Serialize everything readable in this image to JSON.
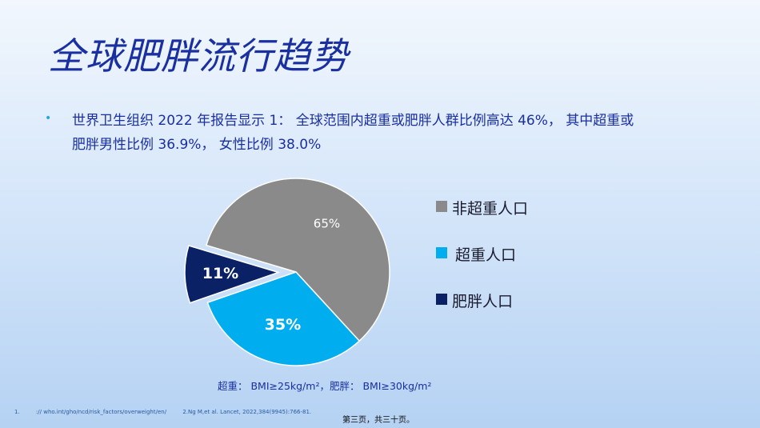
{
  "slide": {
    "title": "全球肥胖流行趋势",
    "bullet_line1": "世界卫生组织 2022 年报告显示 1： 全球范围内超重或肥胖人群比例高达 46%， 其中超重或",
    "bullet_line2": "肥胖男性比例 36.9%， 女性比例 38.0%",
    "note": "超重： BMI≥25kg/m²，肥胖： BMI≥30kg/m²",
    "footnote_num": "1.",
    "footnote_url": "://    who.int/gho/ncd/risk_factors/overweight/en/",
    "footnote_ref": "2.Ng M,et al. Lancet, 2022,384(9945):766-81.",
    "page_number": "第三页，共三十页。"
  },
  "chart_data": {
    "type": "pie",
    "categories": [
      "非超重人口",
      "超重人口",
      "肥胖人口"
    ],
    "values": [
      65,
      35,
      11
    ],
    "labels": [
      "65%",
      "35%",
      "11%"
    ],
    "colors": [
      "#8a8a8a",
      "#00aeef",
      "#0b2166"
    ],
    "legend_position": "right"
  }
}
